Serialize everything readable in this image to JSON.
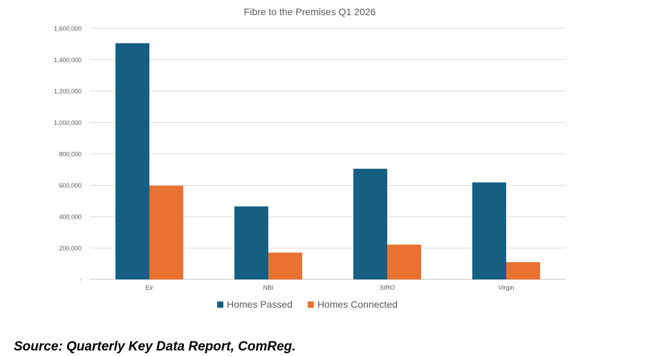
{
  "chart_data": {
    "type": "bar",
    "title": "Fibre to the Premises Q1 2026",
    "xlabel": "",
    "ylabel": "",
    "categories": [
      "Eir",
      "NBI",
      "SIRO",
      "Virgin"
    ],
    "series": [
      {
        "name": "Homes Passed",
        "values": [
          1505000,
          465000,
          705000,
          618000
        ],
        "color": "#156082"
      },
      {
        "name": "Homes Connected",
        "values": [
          597000,
          171000,
          222000,
          110000
        ],
        "color": "#E97132"
      }
    ],
    "ylim": [
      0,
      1600000
    ],
    "yticks": [
      "-",
      "200,000",
      "400,000",
      "600,000",
      "800,000",
      "1,000,000",
      "1,200,000",
      "1,400,000",
      "1,600,000"
    ],
    "grid": true,
    "legend": "bottom"
  },
  "source": "Source: Quarterly Key Data Report, ComReg."
}
